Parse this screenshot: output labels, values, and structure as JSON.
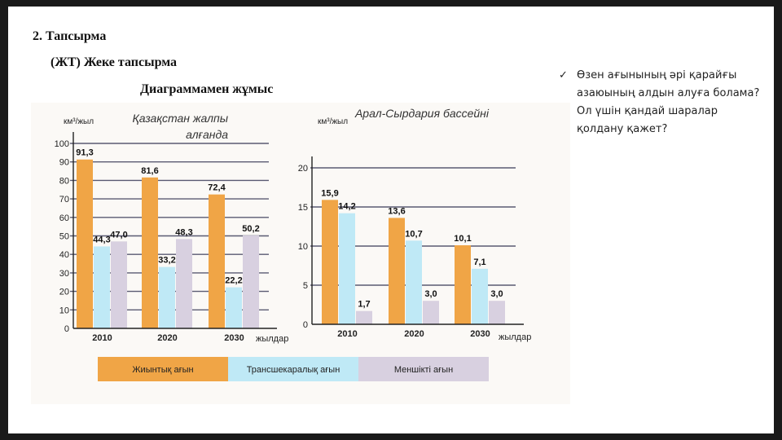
{
  "slide": {
    "heading": "2. Тапсырма",
    "subheading": "(ЖТ) Жеке тапсырма",
    "section_title": "Диаграммамен жұмыс",
    "question_check": "✓",
    "question": "Өзен ағынының әрі қарайғы азаюының алдын алуға болама? Ол үшін қандай шаралар қолдану қажет?"
  },
  "colors": {
    "total": "#f0a546",
    "transboundary": "#bfe9f6",
    "own": "#d8d0e0",
    "grid": "#5a5a72",
    "axis": "#222222"
  },
  "chart_data": [
    {
      "type": "bar",
      "title": "Қазақстан жалпы алғанда",
      "ylabel": "км³/жыл",
      "xlabel": "жылдар",
      "categories": [
        "2010",
        "2020",
        "2030"
      ],
      "ylim": [
        0,
        100
      ],
      "yticks": [
        0,
        10,
        20,
        30,
        40,
        50,
        60,
        70,
        80,
        90,
        100
      ],
      "grid": true,
      "series": [
        {
          "name": "Жиынтық ағын",
          "values": [
            91.3,
            81.6,
            72.4
          ],
          "labels": [
            "91,3",
            "81,6",
            "72,4"
          ]
        },
        {
          "name": "Трансшекаралық ағын",
          "values": [
            44.3,
            33.2,
            22.2
          ],
          "labels": [
            "44,3",
            "33,2",
            "22,2"
          ]
        },
        {
          "name": "Меншікті ағын",
          "values": [
            47.0,
            48.3,
            50.2
          ],
          "labels": [
            "47,0",
            "48,3",
            "50,2"
          ]
        }
      ]
    },
    {
      "type": "bar",
      "title": "Арал-Сырдария бассейні",
      "ylabel": "км³/жыл",
      "xlabel": "жылдар",
      "categories": [
        "2010",
        "2020",
        "2030"
      ],
      "ylim": [
        0,
        20
      ],
      "yticks": [
        0,
        5,
        10,
        15,
        20
      ],
      "grid": true,
      "series": [
        {
          "name": "Жиынтық ағын",
          "values": [
            15.9,
            13.6,
            10.1
          ],
          "labels": [
            "15,9",
            "13,6",
            "10,1"
          ]
        },
        {
          "name": "Трансшекаралық ағын",
          "values": [
            14.2,
            10.7,
            7.1
          ],
          "labels": [
            "14,2",
            "10,7",
            "7,1"
          ]
        },
        {
          "name": "Меншікті ағын",
          "values": [
            1.7,
            3.0,
            3.0
          ],
          "labels": [
            "1,7",
            "3,0",
            "3,0"
          ]
        }
      ]
    }
  ],
  "legend": [
    "Жиынтық ағын",
    "Трансшекаралық ағын",
    "Меншікті ағын"
  ]
}
